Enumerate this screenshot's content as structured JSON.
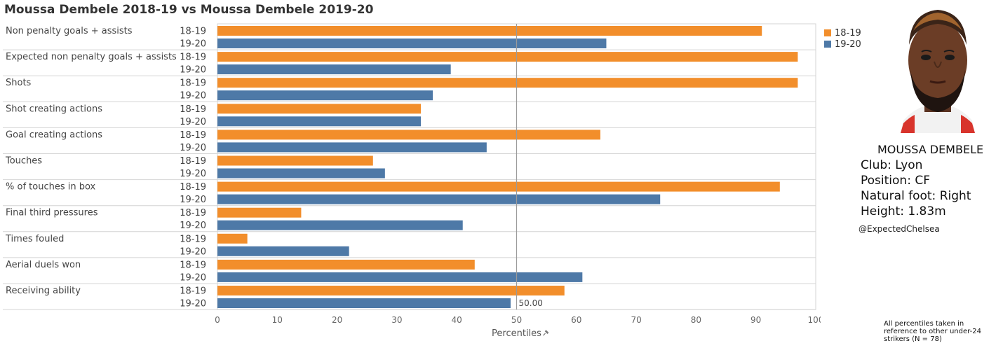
{
  "chart_data": {
    "type": "bar",
    "orientation": "horizontal",
    "title": "Moussa Dembele 2018-19 vs Moussa Dembele 2019-20",
    "categories": [
      "Non penalty goals + assists",
      "Expected non penalty goals + assists",
      "Shots",
      "Shot creating actions",
      "Goal creating actions",
      "Touches",
      "% of touches in box",
      "Final third pressures",
      "Times fouled",
      "Aerial duels won",
      "Receiving ability"
    ],
    "series": [
      {
        "name": "18-19",
        "color": "#f28e2b",
        "values": [
          91,
          97,
          97,
          34,
          64,
          26,
          94,
          14,
          5,
          43,
          58
        ]
      },
      {
        "name": "19-20",
        "color": "#4e79a7",
        "values": [
          65,
          39,
          36,
          34,
          45,
          28,
          74,
          41,
          22,
          61,
          49
        ]
      }
    ],
    "xlabel": "Percentiles",
    "xlim": [
      0,
      100
    ],
    "xticks": [
      0,
      10,
      20,
      30,
      40,
      50,
      60,
      70,
      80,
      90,
      100
    ],
    "reference_line": {
      "value": 50,
      "label": "50.00"
    },
    "legend": "top-right",
    "grid": false
  },
  "player": {
    "name": "MOUSSA DEMBELE",
    "club": "Club: Lyon",
    "position": "Position: CF",
    "foot": "Natural foot: Right",
    "height": "Height: 1.83m"
  },
  "handle": "@ExpectedChelsea",
  "footnote": "All percentiles taken in reference to other under-24 strikers (N = 78)"
}
